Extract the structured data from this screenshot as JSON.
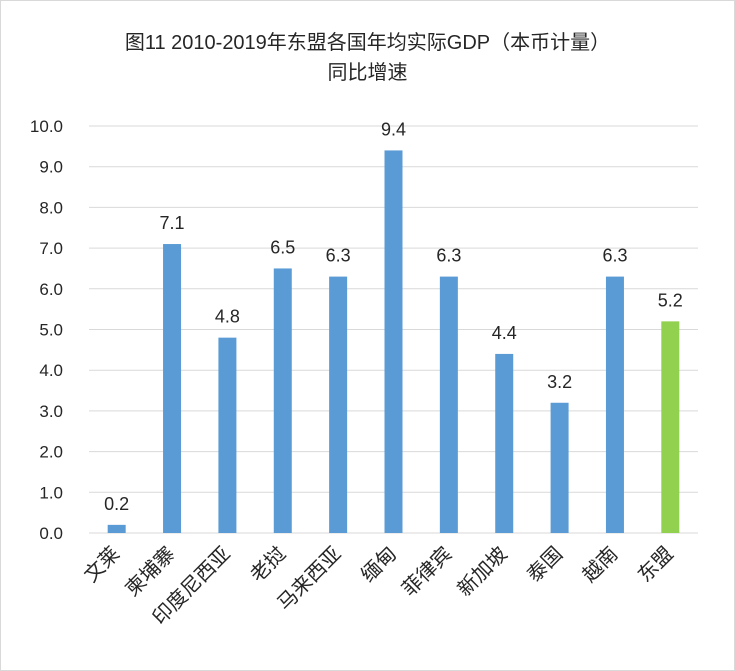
{
  "chart_data": {
    "type": "bar",
    "title_line1": "图11 2010-2019年东盟各国年均实际GDP（本币计量）",
    "title_line2": "同比增速",
    "categories": [
      "文莱",
      "柬埔寨",
      "印度尼西亚",
      "老挝",
      "马来西亚",
      "缅甸",
      "菲律宾",
      "新加坡",
      "泰国",
      "越南",
      "东盟"
    ],
    "values": [
      0.2,
      7.1,
      4.8,
      6.5,
      6.3,
      9.4,
      6.3,
      4.4,
      3.2,
      6.3,
      5.2
    ],
    "data_labels": [
      "0.2",
      "7.1",
      "4.8",
      "6.5",
      "6.3",
      "9.4",
      "6.3",
      "4.4",
      "3.2",
      "6.3",
      "5.2"
    ],
    "yticks": [
      "0.0",
      "1.0",
      "2.0",
      "3.0",
      "4.0",
      "5.0",
      "6.0",
      "7.0",
      "8.0",
      "9.0",
      "10.0"
    ],
    "ylim": [
      0,
      10
    ],
    "grid": true,
    "colors": {
      "bar": "#5b9bd5",
      "highlight_bar": "#92d050",
      "grid": "#d9d9d9"
    },
    "highlight_category": "东盟"
  }
}
